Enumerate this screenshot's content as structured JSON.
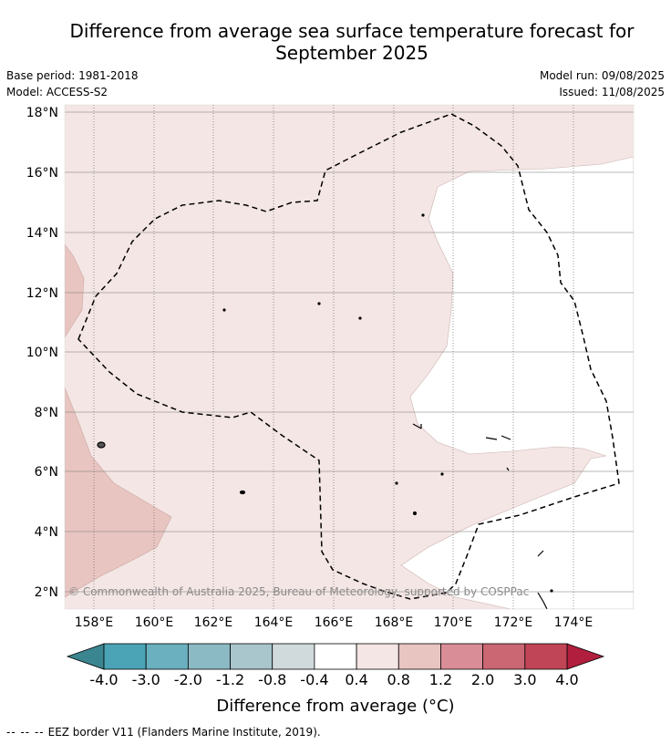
{
  "title_line1": "Difference from average sea surface temperature forecast for",
  "title_line2": "September 2025",
  "base_period": "Base period: 1981-2018",
  "model": "Model: ACCESS-S2",
  "model_run": "Model run: 09/08/2025",
  "issued": "Issued: 11/08/2025",
  "copyright": "© Commonwealth of Australia 2025, Bureau of Meteorology, supported by COSPPac",
  "lat_labels": [
    "18°N",
    "16°N",
    "14°N",
    "12°N",
    "10°N",
    "8°N",
    "6°N",
    "4°N",
    "2°N"
  ],
  "lon_labels": [
    "158°E",
    "160°E",
    "162°E",
    "164°E",
    "166°E",
    "168°E",
    "170°E",
    "172°E",
    "174°E"
  ],
  "colorbar": {
    "ticks": [
      "-4.0",
      "-3.0",
      "-2.0",
      "-1.2",
      "-0.8",
      "-0.4",
      "0.4",
      "0.8",
      "1.2",
      "2.0",
      "3.0",
      "4.0"
    ],
    "colors": [
      "#4aa4b5",
      "#6ab0be",
      "#8cbac4",
      "#a8c6cb",
      "#d0d9db",
      "#ffffff",
      "#f4e6e4",
      "#e8c5c1",
      "#d98e97",
      "#cb6673",
      "#c04556"
    ],
    "under_color": "#3b8591",
    "over_color": "#b21f3e",
    "label": "Difference from average (°C)"
  },
  "legend_text": "EEZ border V11 (Flanders Marine Institute, 2019)."
}
